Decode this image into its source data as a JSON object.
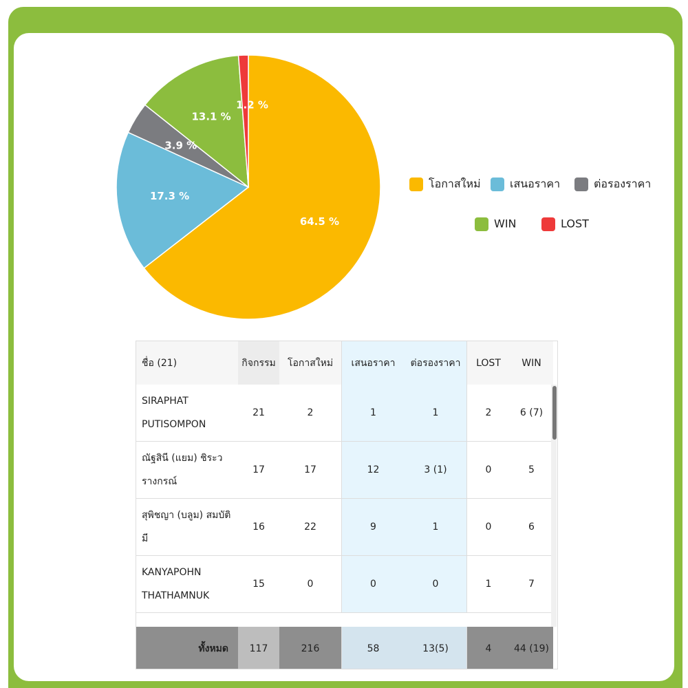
{
  "chart_data": {
    "type": "pie",
    "categories": [
      "โอกาสใหม่",
      "เสนอราคา",
      "ต่อรองราคา",
      "WIN",
      "LOST"
    ],
    "values": [
      64.5,
      17.3,
      3.9,
      13.1,
      1.2
    ],
    "value_labels": [
      "64.5 %",
      "17.3 %",
      "3.9 %",
      "13.1 %",
      "1.2 %"
    ],
    "colors": [
      "#fbb900",
      "#6bbcd9",
      "#7b7c80",
      "#8cbd3e",
      "#ee3a3a"
    ]
  },
  "table": {
    "header": [
      "ชื่อ (21)",
      "กิจกรรม",
      "โอกาสใหม่",
      "เสนอราคา",
      "ต่อรองราคา",
      "LOST",
      "WIN"
    ],
    "rows": [
      [
        "SIRAPHAT PUTISOMPON",
        "21",
        "2",
        "1",
        "1",
        "2",
        "6 (7)"
      ],
      [
        "ณัฐสินี (แยม) ชิระวรางกรณ์",
        "17",
        "17",
        "12",
        "3 (1)",
        "0",
        "5"
      ],
      [
        "สุพิชญา (บลูม) สมบัติมี",
        "16",
        "22",
        "9",
        "1",
        "0",
        "6"
      ],
      [
        "KANYAPOHN THATHAMNUK",
        "15",
        "0",
        "0",
        "0",
        "1",
        "7"
      ]
    ],
    "footer": [
      "ทั้งหมด",
      "117",
      "216",
      "58",
      "13(5)",
      "4",
      "44 (19)"
    ]
  }
}
